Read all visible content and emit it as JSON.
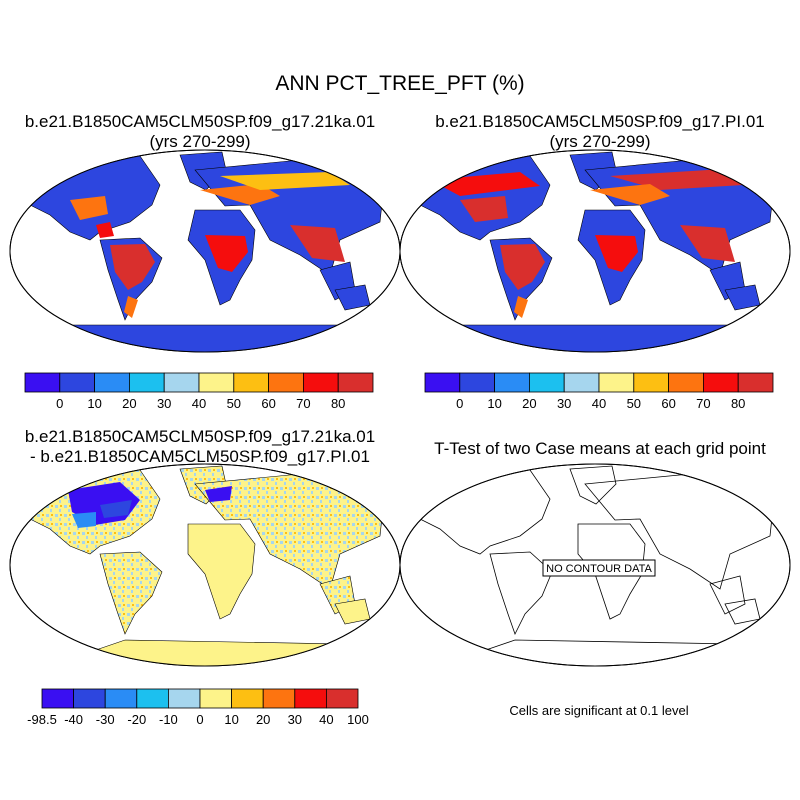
{
  "figure": {
    "title": "ANN PCT_TREE_PFT (%)"
  },
  "panels": [
    {
      "id": "case1",
      "title_line1": "b.e21.B1850CAM5CLM50SP.f09_g17.21ka.01",
      "title_line2": "(yrs 270-299)"
    },
    {
      "id": "case2",
      "title_line1": "b.e21.B1850CAM5CLM50SP.f09_g17.PI.01",
      "title_line2": "(yrs 270-299)"
    },
    {
      "id": "difference",
      "title_line1": "b.e21.B1850CAM5CLM50SP.f09_g17.21ka.01",
      "title_line2": "- b.e21.B1850CAM5CLM50SP.f09_g17.PI.01"
    },
    {
      "id": "ttest",
      "title_line1": "T-Test of two Case means at each grid point",
      "no_data_label": "NO CONTOUR DATA",
      "footer": "Cells are significant at 0.1 level"
    }
  ],
  "colorbars": {
    "percent": {
      "colors": [
        "#3a0ff2",
        "#2d46df",
        "#2a8cf5",
        "#1cc0ef",
        "#a6d6ee",
        "#fdf38a",
        "#fdbf12",
        "#fd7410",
        "#f50d0d",
        "#d92f2d"
      ],
      "labels": [
        "0",
        "10",
        "20",
        "30",
        "40",
        "50",
        "60",
        "70",
        "80"
      ]
    },
    "difference": {
      "colors": [
        "#3a0ff2",
        "#2d46df",
        "#2a8cf5",
        "#1cc0ef",
        "#a6d6ee",
        "#fdf38a",
        "#fdbf12",
        "#fd7410",
        "#f50d0d",
        "#d92f2d"
      ],
      "labels": [
        "-98.5",
        "-40",
        "-30",
        "-20",
        "-10",
        "0",
        "10",
        "20",
        "30",
        "40",
        "100"
      ]
    }
  },
  "colors": {
    "ocean": "#ffffff",
    "coast": "#000000",
    "diff_land": "#fdf38a",
    "diff_speckle": "#a6d6ee"
  }
}
